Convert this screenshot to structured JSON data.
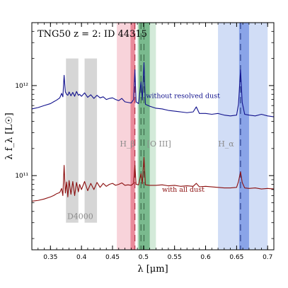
{
  "chart_data": {
    "type": "line",
    "title": "TNG50 z = 2:  ID 44315",
    "xlabel": "λ [μm]",
    "ylabel": "λ f_λ [L☉]",
    "xlim": [
      0.32,
      0.71
    ],
    "ylim": [
      15000000000.0,
      5000000000000.0
    ],
    "yscale": "log",
    "grid": false,
    "x_ticks": [
      0.35,
      0.4,
      0.45,
      0.5,
      0.55,
      0.6,
      0.65,
      0.7
    ],
    "x_tick_labels": [
      "0.35",
      "0.4",
      "0.45",
      "0.5",
      "0.55",
      "0.6",
      "0.65",
      "0.7"
    ],
    "y_ticks": [
      100000000000.0,
      1000000000000.0
    ],
    "y_tick_labels": [
      "10¹¹",
      "10¹²"
    ],
    "bands": [
      {
        "name": "D4000 blue",
        "x0": 0.375,
        "x1": 0.395,
        "y0": 30000000000.0,
        "y1": 2000000000000.0,
        "color": "#d6d6d6"
      },
      {
        "name": "D4000 red",
        "x0": 0.405,
        "x1": 0.425,
        "y0": 30000000000.0,
        "y1": 2000000000000.0,
        "color": "#d6d6d6"
      },
      {
        "name": "Hbeta wide",
        "x0": 0.457,
        "x1": 0.487,
        "color": "#f4b6c2",
        "opacity": 0.6
      },
      {
        "name": "Hbeta narrow",
        "x0": 0.479,
        "x1": 0.486,
        "color": "#e05a70",
        "opacity": 0.6
      },
      {
        "name": "OIII wide",
        "x0": 0.49,
        "x1": 0.52,
        "color": "#b5dcc0",
        "opacity": 0.6
      },
      {
        "name": "OIII narrow",
        "x0": 0.492,
        "x1": 0.51,
        "color": "#3f9a5b",
        "opacity": 0.6
      },
      {
        "name": "Halpha wide",
        "x0": 0.62,
        "x1": 0.7,
        "color": "#b3c6f0",
        "opacity": 0.6
      },
      {
        "name": "Halpha narrow",
        "x0": 0.654,
        "x1": 0.67,
        "color": "#5a7fe0",
        "opacity": 0.6
      }
    ],
    "vlines": [
      {
        "x": 0.4861,
        "color": "#b43246"
      },
      {
        "x": 0.4959,
        "color": "#3e6a4a"
      },
      {
        "x": 0.5007,
        "color": "#3e6a4a"
      },
      {
        "x": 0.6563,
        "color": "#2b3f8c"
      }
    ],
    "annotations": [
      {
        "text": "D4000",
        "x": 0.398,
        "y": 33000000000.0,
        "color": "#8c8c8c"
      },
      {
        "text": "H_β",
        "x": 0.474,
        "y": 210000000000.0,
        "color": "#8c8c8c"
      },
      {
        "text": "[O III]",
        "x": 0.525,
        "y": 210000000000.0,
        "color": "#8c8c8c"
      },
      {
        "text": "H_α",
        "x": 0.633,
        "y": 210000000000.0,
        "color": "#8c8c8c"
      }
    ],
    "series": [
      {
        "name": "without resolved dust",
        "color": "#10108c",
        "label_x": 0.504,
        "label_y": 730000000000.0,
        "x": [
          0.32,
          0.33,
          0.34,
          0.35,
          0.355,
          0.36,
          0.365,
          0.368,
          0.37,
          0.372,
          0.374,
          0.376,
          0.378,
          0.38,
          0.383,
          0.386,
          0.389,
          0.392,
          0.395,
          0.397,
          0.4,
          0.405,
          0.41,
          0.415,
          0.42,
          0.425,
          0.43,
          0.435,
          0.44,
          0.445,
          0.45,
          0.455,
          0.46,
          0.465,
          0.47,
          0.475,
          0.48,
          0.484,
          0.4861,
          0.488,
          0.492,
          0.4959,
          0.498,
          0.5007,
          0.503,
          0.51,
          0.52,
          0.53,
          0.54,
          0.55,
          0.56,
          0.57,
          0.58,
          0.585,
          0.59,
          0.6,
          0.61,
          0.62,
          0.63,
          0.64,
          0.65,
          0.653,
          0.6563,
          0.659,
          0.663,
          0.67,
          0.68,
          0.69,
          0.7,
          0.71
        ],
        "y": [
          550000000000.0,
          570000000000.0,
          600000000000.0,
          630000000000.0,
          660000000000.0,
          690000000000.0,
          730000000000.0,
          820000000000.0,
          750000000000.0,
          1300000000000.0,
          850000000000.0,
          800000000000.0,
          780000000000.0,
          850000000000.0,
          770000000000.0,
          840000000000.0,
          760000000000.0,
          860000000000.0,
          780000000000.0,
          800000000000.0,
          760000000000.0,
          830000000000.0,
          740000000000.0,
          790000000000.0,
          720000000000.0,
          780000000000.0,
          730000000000.0,
          750000000000.0,
          700000000000.0,
          720000000000.0,
          730000000000.0,
          700000000000.0,
          680000000000.0,
          720000000000.0,
          660000000000.0,
          650000000000.0,
          640000000000.0,
          700000000000.0,
          1500000000000.0,
          660000000000.0,
          630000000000.0,
          1100000000000.0,
          690000000000.0,
          1800000000000.0,
          620000000000.0,
          590000000000.0,
          560000000000.0,
          550000000000.0,
          530000000000.0,
          520000000000.0,
          510000000000.0,
          500000000000.0,
          510000000000.0,
          580000000000.0,
          490000000000.0,
          490000000000.0,
          480000000000.0,
          490000000000.0,
          470000000000.0,
          460000000000.0,
          470000000000.0,
          620000000000.0,
          1500000000000.0,
          650000000000.0,
          480000000000.0,
          470000000000.0,
          460000000000.0,
          480000000000.0,
          460000000000.0,
          450000000000.0
        ]
      },
      {
        "name": "with all dust",
        "color": "#8b0e0e",
        "label_x": 0.53,
        "label_y": 66000000000.0,
        "x": [
          0.32,
          0.33,
          0.34,
          0.35,
          0.355,
          0.36,
          0.365,
          0.368,
          0.37,
          0.372,
          0.374,
          0.376,
          0.378,
          0.38,
          0.383,
          0.386,
          0.389,
          0.392,
          0.395,
          0.397,
          0.4,
          0.405,
          0.41,
          0.415,
          0.42,
          0.425,
          0.43,
          0.435,
          0.44,
          0.445,
          0.45,
          0.455,
          0.46,
          0.465,
          0.47,
          0.475,
          0.48,
          0.484,
          0.4861,
          0.488,
          0.492,
          0.4959,
          0.498,
          0.5007,
          0.503,
          0.51,
          0.52,
          0.53,
          0.54,
          0.55,
          0.56,
          0.57,
          0.58,
          0.585,
          0.59,
          0.6,
          0.61,
          0.62,
          0.63,
          0.64,
          0.65,
          0.653,
          0.6563,
          0.659,
          0.663,
          0.67,
          0.68,
          0.69,
          0.7,
          0.71
        ],
        "y": [
          52000000000.0,
          53000000000.0,
          55000000000.0,
          58000000000.0,
          60000000000.0,
          63000000000.0,
          65000000000.0,
          72000000000.0,
          60000000000.0,
          130000000000.0,
          64000000000.0,
          85000000000.0,
          58000000000.0,
          88000000000.0,
          62000000000.0,
          86000000000.0,
          60000000000.0,
          84000000000.0,
          66000000000.0,
          80000000000.0,
          70000000000.0,
          86000000000.0,
          68000000000.0,
          82000000000.0,
          70000000000.0,
          84000000000.0,
          74000000000.0,
          82000000000.0,
          76000000000.0,
          80000000000.0,
          82000000000.0,
          78000000000.0,
          80000000000.0,
          83000000000.0,
          78000000000.0,
          79000000000.0,
          78000000000.0,
          82000000000.0,
          130000000000.0,
          80000000000.0,
          79000000000.0,
          105000000000.0,
          81000000000.0,
          160000000000.0,
          79000000000.0,
          78000000000.0,
          78000000000.0,
          79000000000.0,
          77000000000.0,
          78000000000.0,
          76000000000.0,
          77000000000.0,
          76000000000.0,
          82000000000.0,
          75000000000.0,
          76000000000.0,
          75000000000.0,
          74000000000.0,
          73000000000.0,
          73000000000.0,
          74000000000.0,
          86000000000.0,
          110000000000.0,
          84000000000.0,
          73000000000.0,
          72000000000.0,
          73000000000.0,
          71000000000.0,
          72000000000.0,
          71000000000.0
        ]
      }
    ]
  }
}
